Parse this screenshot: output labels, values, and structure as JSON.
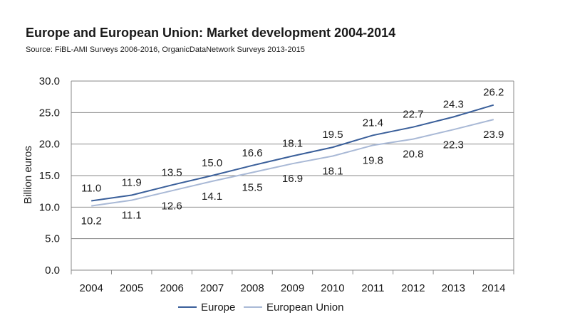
{
  "chart_data": {
    "type": "line",
    "title": "Europe and European Union: Market development 2004-2014",
    "subtitle": "Source: FiBL-AMI Surveys 2006-2016, OrganicDataNetwork Surveys 2013-2015",
    "xlabel": "",
    "ylabel": "Billion euros",
    "categories": [
      "2004",
      "2005",
      "2006",
      "2007",
      "2008",
      "2009",
      "2010",
      "2011",
      "2012",
      "2013",
      "2014"
    ],
    "ylim": [
      0,
      30
    ],
    "yticks": [
      "0.0",
      "5.0",
      "10.0",
      "15.0",
      "20.0",
      "25.0",
      "30.0"
    ],
    "grid": true,
    "legend_position": "bottom",
    "series": [
      {
        "name": "Europe",
        "color": "#3a5f9a",
        "values": [
          11.0,
          11.9,
          13.5,
          15.0,
          16.6,
          18.1,
          19.5,
          21.4,
          22.7,
          24.3,
          26.2
        ],
        "labels": [
          "11.0",
          "11.9",
          "13.5",
          "15.0",
          "16.6",
          "18.1",
          "19.5",
          "21.4",
          "22.7",
          "24.3",
          "26.2"
        ]
      },
      {
        "name": "European Union",
        "color": "#a9b9d6",
        "values": [
          10.2,
          11.1,
          12.6,
          14.1,
          15.5,
          16.9,
          18.1,
          19.8,
          20.8,
          22.3,
          23.9
        ],
        "labels": [
          "10.2",
          "11.1",
          "12.6",
          "14.1",
          "15.5",
          "16.9",
          "18.1",
          "19.8",
          "20.8",
          "22.3",
          "23.9"
        ]
      }
    ]
  }
}
